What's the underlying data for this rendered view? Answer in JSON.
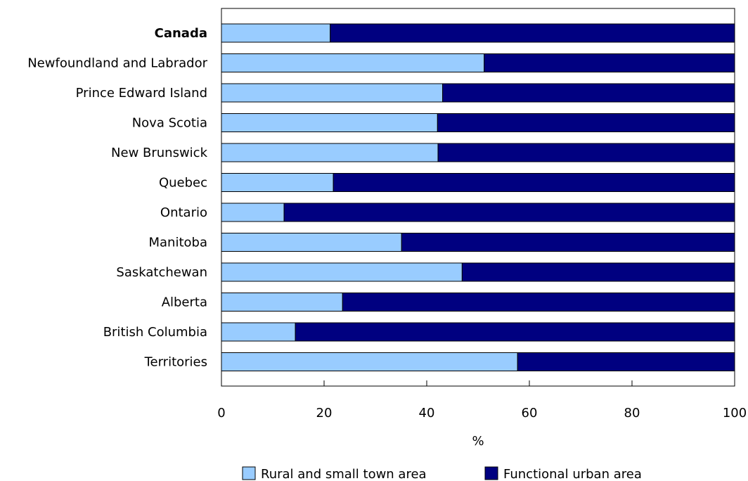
{
  "chart_data": {
    "type": "bar",
    "orientation": "horizontal",
    "stacked": true,
    "categories": [
      "Canada",
      "Newfoundland and Labrador",
      "Prince Edward Island",
      "Nova Scotia",
      "New Brunswick",
      "Quebec",
      "Ontario",
      "Manitoba",
      "Saskatchewan",
      "Alberta",
      "British Columbia",
      "Territories"
    ],
    "bold_categories": [
      "Canada"
    ],
    "series": [
      {
        "name": "Rural and small town area",
        "color": "#99ccff",
        "values": [
          21.2,
          51.2,
          43.1,
          42.1,
          42.2,
          21.8,
          12.2,
          35.1,
          46.9,
          23.6,
          14.4,
          57.7
        ]
      },
      {
        "name": "Functional urban area",
        "color": "#000080",
        "values": [
          78.8,
          48.8,
          56.9,
          57.9,
          57.8,
          78.2,
          87.8,
          64.9,
          53.1,
          76.4,
          85.6,
          42.3
        ]
      }
    ],
    "xlabel": "%",
    "ylabel": "",
    "title": "",
    "xlim": [
      0,
      100
    ],
    "xticks": [
      0,
      20,
      40,
      60,
      80,
      100
    ],
    "grid": false,
    "legend_position": "bottom"
  }
}
